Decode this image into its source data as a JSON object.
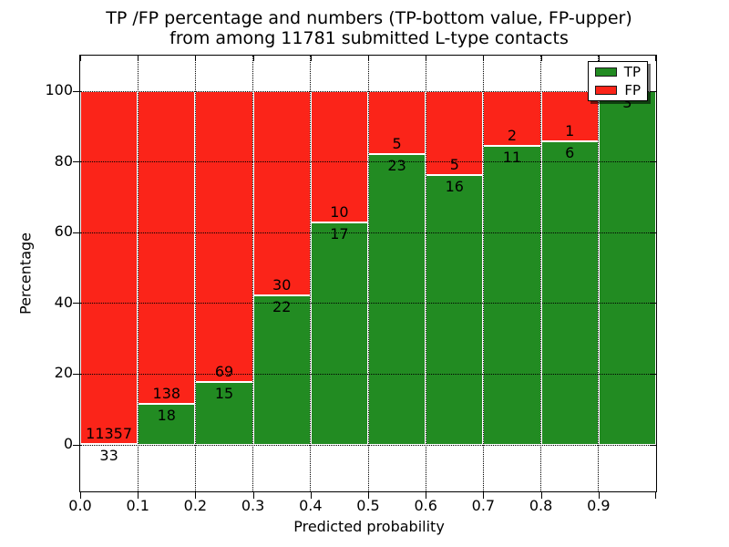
{
  "title": {
    "line1": "TP /FP percentage and numbers (TP-bottom value, FP-upper)",
    "line2": "from among 11781 submitted L-type contacts"
  },
  "chart_data": {
    "type": "bar",
    "subtype": "stacked-100-percent",
    "title": "TP /FP percentage and numbers (TP-bottom value, FP-upper) from among 11781 submitted L-type contacts",
    "xlabel": "Predicted probability",
    "ylabel": "Percentage",
    "total_submitted": 11781,
    "x_tick_labels": [
      "0.0",
      "0.1",
      "0.2",
      "0.3",
      "0.4",
      "0.5",
      "0.6",
      "0.7",
      "0.8",
      "0.9"
    ],
    "y_ticks": [
      0,
      20,
      40,
      60,
      80,
      100
    ],
    "xlim": [
      0.0,
      1.0
    ],
    "ylim": [
      0,
      100
    ],
    "grid": "dotted black, both axes",
    "legend": {
      "position": "upper right",
      "entries": [
        {
          "label": "TP",
          "color": "#228b22"
        },
        {
          "label": "FP",
          "color": "#fb2419"
        }
      ]
    },
    "colors": {
      "tp": "#228b22",
      "fp": "#fb2419",
      "bar_edge": "#ffffff"
    },
    "bins": [
      {
        "range": [
          0.0,
          0.1
        ],
        "tp": 33,
        "fp": 11357,
        "tp_pct": 0.29
      },
      {
        "range": [
          0.1,
          0.2
        ],
        "tp": 18,
        "fp": 138,
        "tp_pct": 11.54
      },
      {
        "range": [
          0.2,
          0.3
        ],
        "tp": 15,
        "fp": 69,
        "tp_pct": 17.86
      },
      {
        "range": [
          0.3,
          0.4
        ],
        "tp": 22,
        "fp": 30,
        "tp_pct": 42.31
      },
      {
        "range": [
          0.4,
          0.5
        ],
        "tp": 17,
        "fp": 10,
        "tp_pct": 62.96
      },
      {
        "range": [
          0.5,
          0.6
        ],
        "tp": 23,
        "fp": 5,
        "tp_pct": 82.14
      },
      {
        "range": [
          0.6,
          0.7
        ],
        "tp": 16,
        "fp": 5,
        "tp_pct": 76.19
      },
      {
        "range": [
          0.7,
          0.8
        ],
        "tp": 11,
        "fp": 2,
        "tp_pct": 84.62
      },
      {
        "range": [
          0.8,
          0.9
        ],
        "tp": 6,
        "fp": 1,
        "tp_pct": 85.71
      },
      {
        "range": [
          0.9,
          1.0
        ],
        "tp": 3,
        "fp": 0,
        "tp_pct": 100.0
      }
    ]
  }
}
